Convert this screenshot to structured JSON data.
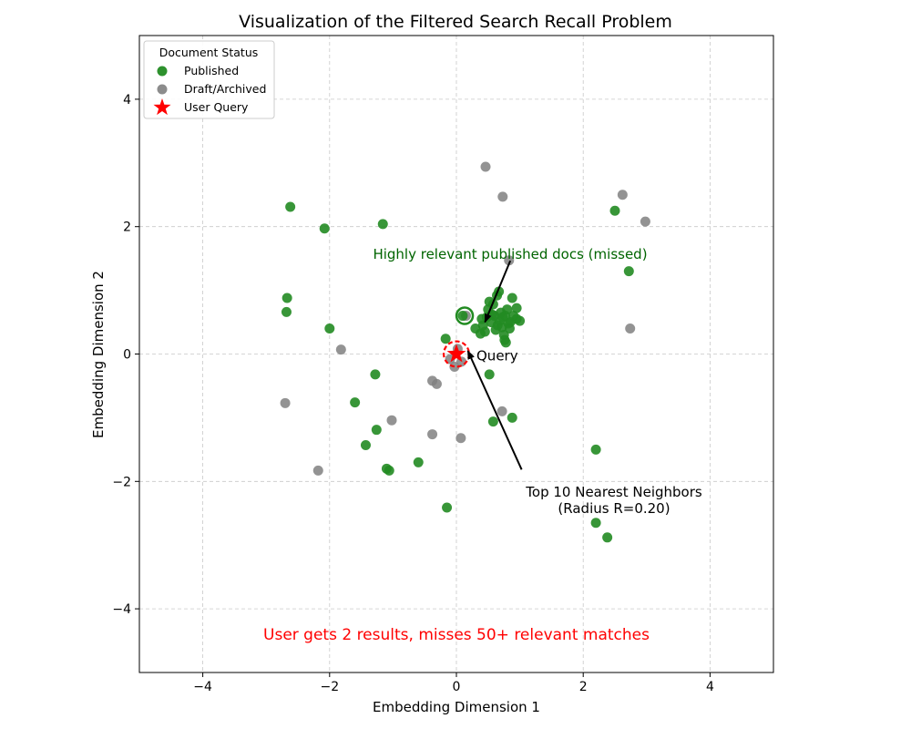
{
  "chart_data": {
    "type": "scatter",
    "title": "Visualization of the Filtered Search Recall Problem",
    "xlabel": "Embedding Dimension 1",
    "ylabel": "Embedding Dimension 2",
    "xlim": [
      -5,
      5
    ],
    "ylim": [
      -5,
      5
    ],
    "xticks": [
      -4,
      -2,
      0,
      2,
      4
    ],
    "yticks": [
      -4,
      -2,
      0,
      2,
      4
    ],
    "grid": true,
    "colors": {
      "published": "#228B22",
      "draft": "#808080",
      "query": "#ff0000",
      "annotation_green": "#006400",
      "annotation_red": "#ff0000",
      "arrow": "#000000"
    },
    "legend": {
      "position": "upper-left",
      "title": "Document Status",
      "entries": [
        {
          "label": "Published",
          "key": "published"
        },
        {
          "label": "Draft/Archived",
          "key": "draft"
        },
        {
          "label": "User Query",
          "key": "query"
        }
      ]
    },
    "series": [
      {
        "name": "Published",
        "points": [
          [
            -2.62,
            2.31
          ],
          [
            -2.08,
            1.97
          ],
          [
            -1.16,
            2.04
          ],
          [
            -2.67,
            0.88
          ],
          [
            -2.68,
            0.66
          ],
          [
            -2.0,
            0.4
          ],
          [
            -1.28,
            -0.32
          ],
          [
            -1.6,
            -0.76
          ],
          [
            -1.26,
            -1.19
          ],
          [
            -1.43,
            -1.43
          ],
          [
            -1.1,
            -1.8
          ],
          [
            -1.06,
            -1.83
          ],
          [
            -0.6,
            -1.7
          ],
          [
            -0.17,
            0.24
          ],
          [
            -0.15,
            -2.41
          ],
          [
            0.52,
            -0.32
          ],
          [
            0.58,
            -1.06
          ],
          [
            0.88,
            -1.0
          ],
          [
            2.2,
            -1.5
          ],
          [
            2.2,
            -2.65
          ],
          [
            2.38,
            -2.88
          ],
          [
            2.5,
            2.25
          ],
          [
            2.72,
            1.3
          ],
          [
            0.1,
            0.6
          ],
          [
            0.3,
            0.4
          ],
          [
            0.4,
            0.55
          ],
          [
            0.45,
            0.35
          ],
          [
            0.5,
            0.7
          ],
          [
            0.55,
            0.5
          ],
          [
            0.6,
            0.6
          ],
          [
            0.65,
            0.45
          ],
          [
            0.7,
            0.65
          ],
          [
            0.75,
            0.3
          ],
          [
            0.8,
            0.7
          ],
          [
            0.85,
            0.5
          ],
          [
            0.9,
            0.6
          ],
          [
            0.95,
            0.55
          ],
          [
            0.62,
            0.38
          ],
          [
            0.68,
            0.52
          ],
          [
            0.72,
            0.42
          ],
          [
            0.78,
            0.18
          ],
          [
            0.82,
            0.48
          ],
          [
            0.88,
            0.88
          ],
          [
            0.95,
            0.72
          ],
          [
            0.58,
            0.78
          ],
          [
            0.52,
            0.82
          ],
          [
            0.67,
            0.98
          ],
          [
            0.64,
            0.92
          ],
          [
            0.77,
            0.6
          ],
          [
            0.84,
            0.4
          ],
          [
            0.48,
            0.58
          ],
          [
            0.42,
            0.45
          ],
          [
            0.38,
            0.32
          ],
          [
            0.56,
            0.62
          ],
          [
            0.73,
            0.58
          ],
          [
            1.0,
            0.52
          ],
          [
            0.76,
            0.22
          ]
        ]
      },
      {
        "name": "Draft/Archived",
        "points": [
          [
            0.46,
            2.94
          ],
          [
            0.73,
            2.47
          ],
          [
            2.62,
            2.5
          ],
          [
            2.98,
            2.08
          ],
          [
            0.83,
            1.47
          ],
          [
            2.74,
            0.4
          ],
          [
            -1.82,
            0.07
          ],
          [
            -2.7,
            -0.77
          ],
          [
            -1.02,
            -1.04
          ],
          [
            -0.38,
            -0.42
          ],
          [
            -0.31,
            -0.47
          ],
          [
            -0.38,
            -1.26
          ],
          [
            0.07,
            -1.32
          ],
          [
            0.72,
            -0.9
          ],
          [
            -2.18,
            -1.83
          ],
          [
            0.15,
            0.6
          ],
          [
            -0.03,
            -0.2
          ],
          [
            0.08,
            -0.12
          ],
          [
            -0.1,
            -0.08
          ],
          [
            0.02,
            0.08
          ]
        ]
      }
    ],
    "query": {
      "label": "Query",
      "x": 0.0,
      "y": 0.0
    },
    "neighbor_radius": 0.2,
    "annotations": [
      {
        "key": "missed",
        "text": "Highly relevant published docs (missed)",
        "anchor": [
          0.45,
          0.5
        ],
        "text_at": [
          0.85,
          1.55
        ]
      },
      {
        "key": "neighbors",
        "line1": "Top 10 Nearest Neighbors",
        "line2": "(Radius R=0.20)",
        "anchor": [
          0.18,
          0.05
        ],
        "text_at": [
          1.0,
          -1.9
        ]
      },
      {
        "key": "bottom",
        "text": "User gets 2 results, misses 50+ relevant matches",
        "text_at": [
          0.0,
          -4.4
        ]
      }
    ]
  }
}
